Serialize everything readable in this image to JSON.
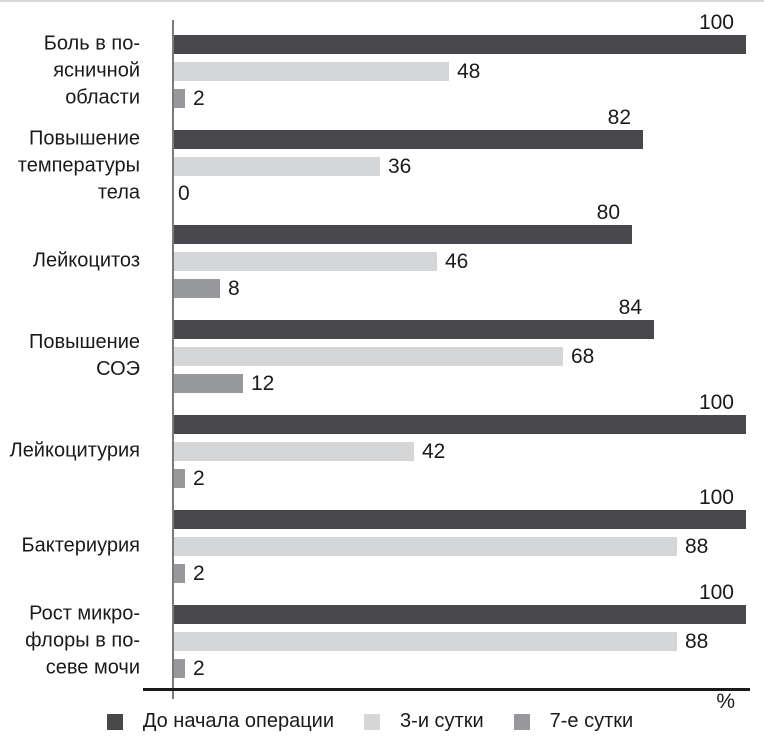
{
  "figure": {
    "unit_label": "%",
    "text_color": "#1a1a1a",
    "axis_line_color": "#1a1a1a",
    "category_axis_line_color": "#7a7a7a",
    "background_color": "#ffffff"
  },
  "chart_data": {
    "type": "bar",
    "orientation": "horizontal",
    "title": "",
    "xlabel": "%",
    "ylabel": "",
    "xlim": [
      0,
      100
    ],
    "grid": false,
    "legend_position": "bottom",
    "value_labels_shown": true,
    "categories": [
      "Боль в поясничной области",
      "Повышение температуры тела",
      "Лейкоцитоз",
      "Повышение СОЭ",
      "Лейкоцитурия",
      "Бактериурия",
      "Рост микрофлоры в посеве мочи"
    ],
    "category_lines": [
      [
        "Боль в по-",
        "ясничной",
        "области"
      ],
      [
        "Повышение",
        "температуры",
        "тела"
      ],
      [
        "Лейкоцитоз"
      ],
      [
        "Повышение",
        "СОЭ"
      ],
      [
        "Лейкоцитурия"
      ],
      [
        "Бактериурия"
      ],
      [
        "Рост микро-",
        "флоры в по-",
        "севе мочи"
      ]
    ],
    "series": [
      {
        "name": "До начала операции",
        "color": "#48484c",
        "values": [
          100,
          82,
          80,
          84,
          100,
          100,
          100
        ]
      },
      {
        "name": "3-и сутки",
        "color": "#d5d6d8",
        "values": [
          48,
          36,
          46,
          68,
          42,
          88,
          88
        ]
      },
      {
        "name": "7-е сутки",
        "color": "#97989b",
        "values": [
          2,
          0,
          8,
          12,
          2,
          2,
          2
        ]
      }
    ]
  }
}
